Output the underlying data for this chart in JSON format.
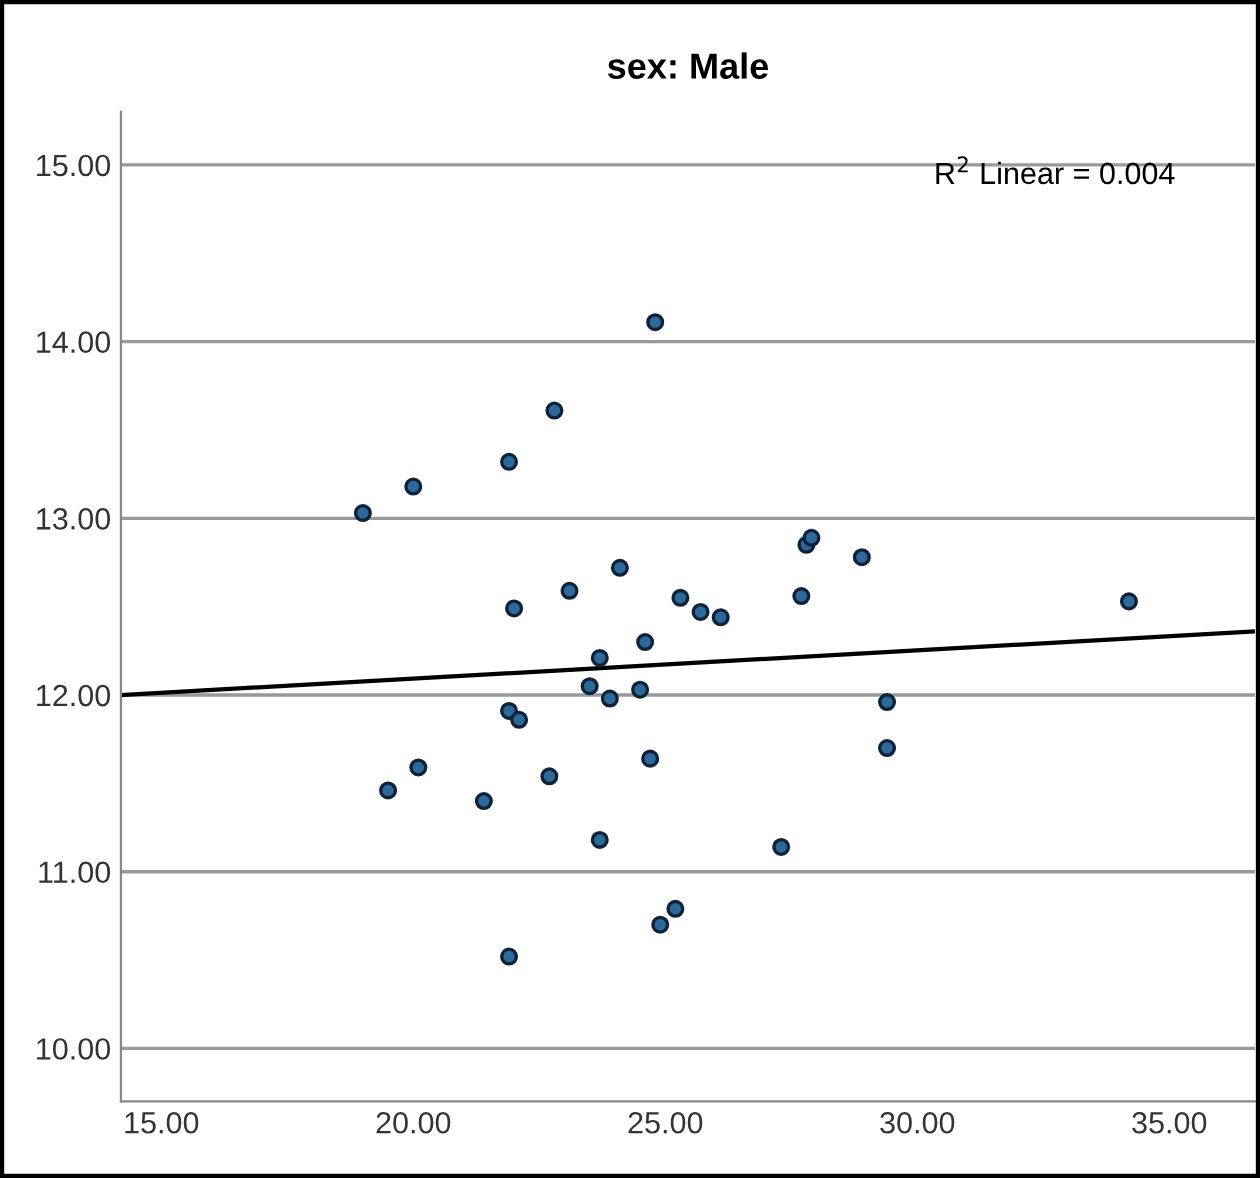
{
  "chart_data": {
    "type": "scatter",
    "title": "sex: Male",
    "xlim": [
      14.2,
      36.7
    ],
    "ylim": [
      9.7,
      15.3
    ],
    "xticks": [
      {
        "value": 15,
        "label": "15.00"
      },
      {
        "value": 20,
        "label": "20.00"
      },
      {
        "value": 25,
        "label": "25.00"
      },
      {
        "value": 30,
        "label": "30.00"
      },
      {
        "value": 35,
        "label": "35.00"
      }
    ],
    "yticks": [
      {
        "value": 10,
        "label": "10.00"
      },
      {
        "value": 11,
        "label": "11.00"
      },
      {
        "value": 12,
        "label": "12.00"
      },
      {
        "value": 13,
        "label": "13.00"
      },
      {
        "value": 14,
        "label": "14.00"
      },
      {
        "value": 15,
        "label": "15.00"
      }
    ],
    "grid": "y",
    "annotations": [
      "R$^{2}$ Linear = 0.004"
    ],
    "series": [
      {
        "marker": "circle",
        "color": "#2b6a9a",
        "x": [
          19.0,
          19.5,
          20.0,
          20.1,
          21.4,
          21.9,
          22.0,
          21.9,
          21.9,
          22.1,
          22.7,
          22.8,
          23.1,
          24.1,
          24.8,
          25.3,
          25.7,
          26.1,
          23.7,
          24.6,
          23.5,
          23.9,
          24.5,
          24.7,
          23.7,
          24.9,
          25.2,
          27.7,
          27.8,
          27.9,
          28.9,
          29.4,
          29.4,
          27.3,
          34.2
        ],
        "values": [
          13.03,
          11.46,
          13.18,
          11.59,
          11.4,
          13.32,
          12.49,
          10.52,
          11.91,
          11.86,
          11.54,
          13.61,
          12.59,
          12.72,
          14.11,
          12.55,
          12.47,
          12.44,
          12.21,
          12.3,
          12.05,
          11.98,
          12.03,
          11.64,
          11.18,
          10.7,
          10.79,
          12.56,
          12.85,
          12.89,
          12.78,
          11.96,
          11.7,
          11.14,
          12.53
        ]
      },
      {
        "type": "line",
        "color": "#000000",
        "x": [
          14.2,
          36.7
        ],
        "values": [
          12.0,
          12.36
        ]
      }
    ]
  }
}
